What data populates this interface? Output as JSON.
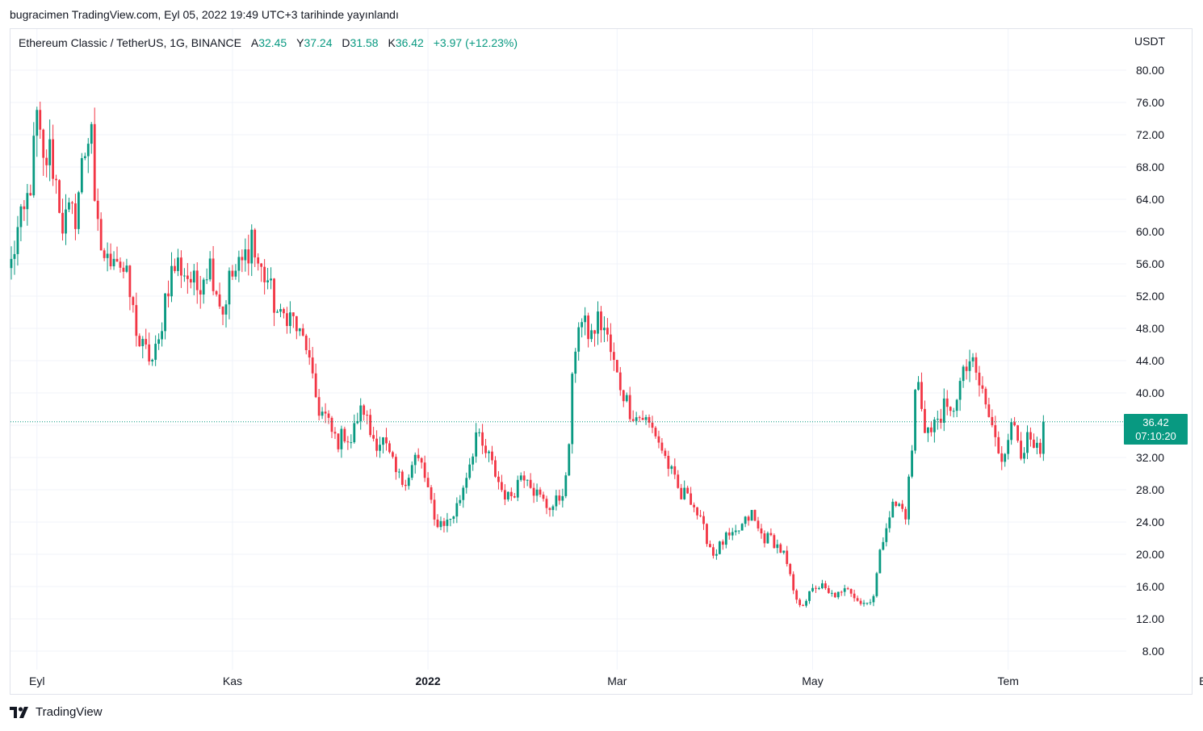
{
  "header": {
    "published_text": "bugracimen TradingView.com, Eyl 05, 2022 19:49 UTC+3 tarihinde yayınlandı"
  },
  "legend": {
    "symbol": "Ethereum Classic / TetherUS, 1G, BINANCE",
    "open_label": "A",
    "open_value": "32.45",
    "high_label": "Y",
    "high_value": "37.24",
    "low_label": "D",
    "low_value": "31.58",
    "close_label": "K",
    "close_value": "36.42",
    "change": "+3.97 (+12.23%)"
  },
  "axis": {
    "currency": "USDT"
  },
  "price_tag": {
    "price": "36.42",
    "countdown": "07:10:20"
  },
  "brand": {
    "name": "TradingView",
    "icon": "tradingview-logo-icon"
  },
  "colors": {
    "up": "#089981",
    "down": "#f23645",
    "grid": "#f0f3fa",
    "last_price_line": "#089981"
  },
  "chart_data": {
    "type": "candlestick",
    "xlabel": "",
    "ylabel": "",
    "ylim": [
      6,
      84
    ],
    "grid": true,
    "y_ticks": [
      "8.00",
      "12.00",
      "16.00",
      "20.00",
      "24.00",
      "28.00",
      "32.00",
      "36.00",
      "40.00",
      "44.00",
      "48.00",
      "52.00",
      "56.00",
      "60.00",
      "64.00",
      "68.00",
      "72.00",
      "76.00",
      "80.00"
    ],
    "x_ticks": [
      {
        "label": "Eyl",
        "index": 8,
        "bold": false
      },
      {
        "label": "Kas",
        "index": 69,
        "bold": false
      },
      {
        "label": "2022",
        "index": 130,
        "bold": true
      },
      {
        "label": "Mar",
        "index": 189,
        "bold": false
      },
      {
        "label": "May",
        "index": 250,
        "bold": false
      },
      {
        "label": "Tem",
        "index": 311,
        "bold": false
      },
      {
        "label": "Eyl",
        "index": 373,
        "bold": false
      }
    ],
    "last_price": 36.42,
    "series": [
      {
        "name": "",
        "waypoints": [
          [
            0,
            56
          ],
          [
            2,
            60
          ],
          [
            4,
            62
          ],
          [
            6,
            66
          ],
          [
            8,
            74
          ],
          [
            10,
            68
          ],
          [
            12,
            70
          ],
          [
            14,
            66
          ],
          [
            16,
            61
          ],
          [
            18,
            62
          ],
          [
            20,
            62
          ],
          [
            22,
            68
          ],
          [
            24,
            72
          ],
          [
            25,
            74
          ],
          [
            26,
            62
          ],
          [
            28,
            58
          ],
          [
            30,
            56
          ],
          [
            32,
            58
          ],
          [
            34,
            56
          ],
          [
            36,
            54
          ],
          [
            38,
            50
          ],
          [
            40,
            46
          ],
          [
            42,
            45
          ],
          [
            44,
            44
          ],
          [
            46,
            46
          ],
          [
            48,
            52
          ],
          [
            50,
            55
          ],
          [
            52,
            56
          ],
          [
            54,
            55
          ],
          [
            56,
            54
          ],
          [
            58,
            53
          ],
          [
            60,
            55
          ],
          [
            62,
            56
          ],
          [
            64,
            53
          ],
          [
            66,
            50
          ],
          [
            68,
            54
          ],
          [
            70,
            55
          ],
          [
            72,
            56
          ],
          [
            74,
            58
          ],
          [
            75,
            60
          ],
          [
            76,
            57
          ],
          [
            78,
            55
          ],
          [
            80,
            54
          ],
          [
            82,
            51
          ],
          [
            84,
            49
          ],
          [
            86,
            50
          ],
          [
            88,
            49
          ],
          [
            90,
            47
          ],
          [
            92,
            46
          ],
          [
            94,
            41
          ],
          [
            96,
            38
          ],
          [
            98,
            37
          ],
          [
            100,
            35
          ],
          [
            102,
            34
          ],
          [
            104,
            35
          ],
          [
            106,
            34
          ],
          [
            108,
            37
          ],
          [
            110,
            38
          ],
          [
            112,
            35
          ],
          [
            114,
            34
          ],
          [
            116,
            34
          ],
          [
            118,
            32
          ],
          [
            120,
            30
          ],
          [
            122,
            29
          ],
          [
            124,
            30
          ],
          [
            126,
            32
          ],
          [
            128,
            31
          ],
          [
            130,
            28
          ],
          [
            132,
            24
          ],
          [
            134,
            24
          ],
          [
            136,
            24
          ],
          [
            138,
            25
          ],
          [
            140,
            27
          ],
          [
            142,
            30
          ],
          [
            144,
            33
          ],
          [
            145,
            35
          ],
          [
            147,
            33
          ],
          [
            149,
            32
          ],
          [
            151,
            30
          ],
          [
            153,
            28
          ],
          [
            155,
            27
          ],
          [
            157,
            28
          ],
          [
            159,
            30
          ],
          [
            161,
            30
          ],
          [
            163,
            28
          ],
          [
            165,
            27
          ],
          [
            167,
            26
          ],
          [
            169,
            26
          ],
          [
            171,
            27
          ],
          [
            173,
            29
          ],
          [
            174,
            34
          ],
          [
            175,
            41
          ],
          [
            176,
            46
          ],
          [
            177,
            49
          ],
          [
            179,
            48
          ],
          [
            181,
            47
          ],
          [
            183,
            49
          ],
          [
            185,
            48
          ],
          [
            187,
            45
          ],
          [
            189,
            42
          ],
          [
            191,
            40
          ],
          [
            193,
            38
          ],
          [
            195,
            37
          ],
          [
            197,
            37
          ],
          [
            199,
            36
          ],
          [
            201,
            35
          ],
          [
            203,
            33
          ],
          [
            205,
            31
          ],
          [
            207,
            29
          ],
          [
            209,
            27
          ],
          [
            211,
            28
          ],
          [
            213,
            26
          ],
          [
            215,
            24
          ],
          [
            217,
            22
          ],
          [
            219,
            20
          ],
          [
            221,
            21
          ],
          [
            223,
            22
          ],
          [
            225,
            22
          ],
          [
            227,
            23
          ],
          [
            229,
            24
          ],
          [
            231,
            25
          ],
          [
            233,
            23
          ],
          [
            235,
            22
          ],
          [
            237,
            22
          ],
          [
            239,
            21
          ],
          [
            241,
            20
          ],
          [
            243,
            17
          ],
          [
            245,
            14
          ],
          [
            247,
            14
          ],
          [
            249,
            15
          ],
          [
            251,
            16
          ],
          [
            253,
            16
          ],
          [
            255,
            15
          ],
          [
            257,
            15
          ],
          [
            259,
            15
          ],
          [
            261,
            16
          ],
          [
            263,
            15
          ],
          [
            265,
            14
          ],
          [
            267,
            14
          ],
          [
            269,
            15
          ],
          [
            271,
            20
          ],
          [
            273,
            24
          ],
          [
            275,
            26
          ],
          [
            277,
            26
          ],
          [
            279,
            25
          ],
          [
            281,
            33
          ],
          [
            282,
            40
          ],
          [
            283,
            41
          ],
          [
            285,
            36
          ],
          [
            287,
            35
          ],
          [
            289,
            37
          ],
          [
            291,
            38
          ],
          [
            293,
            37
          ],
          [
            295,
            40
          ],
          [
            297,
            42
          ],
          [
            299,
            44
          ],
          [
            301,
            42
          ],
          [
            303,
            40
          ],
          [
            305,
            37
          ],
          [
            307,
            34
          ],
          [
            309,
            32
          ],
          [
            311,
            35
          ],
          [
            313,
            36
          ],
          [
            315,
            33
          ],
          [
            317,
            34
          ],
          [
            319,
            33
          ],
          [
            321,
            32.45
          ],
          [
            322,
            36.42
          ]
        ]
      }
    ]
  }
}
